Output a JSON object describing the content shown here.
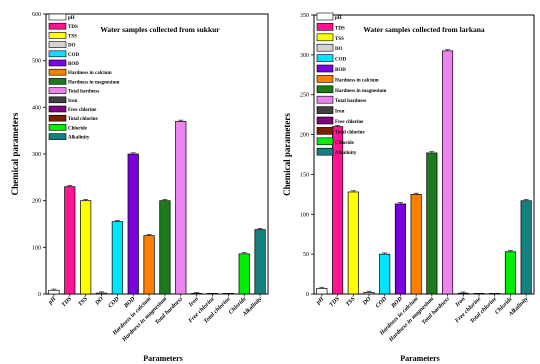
{
  "chart_data": [
    {
      "type": "bar",
      "title": "Water samples collected from sukkur",
      "xlabel": "Parameters",
      "ylabel": "Chemical parameters",
      "ylim": [
        0,
        600
      ],
      "yticks": [
        0,
        100,
        200,
        300,
        400,
        500,
        600
      ],
      "legend_position": "top-left",
      "categories": [
        "pH",
        "TDS",
        "TSS",
        "DO",
        "COD",
        "BOD",
        "Hardness in calcium",
        "Hardness in magnesium",
        "Total hardness",
        "Iron",
        "Free chlorine",
        "Total chlorine",
        "Chloride",
        "Alkalinity"
      ],
      "values": [
        8,
        230,
        200,
        2,
        155,
        300,
        125,
        200,
        370,
        1,
        0,
        0,
        86,
        138
      ]
    },
    {
      "type": "bar",
      "title": "Water samples collected from larkana",
      "xlabel": "Parameters",
      "ylabel": "Chemical parameters",
      "ylim": [
        0,
        350
      ],
      "yticks": [
        0,
        50,
        100,
        150,
        200,
        250,
        300,
        350
      ],
      "legend_position": "top-left",
      "categories": [
        "pH",
        "TDS",
        "TSS",
        "DO",
        "COD",
        "BOD",
        "Hardness in calcium",
        "Hardness in magnesium",
        "Total hardness",
        "Iron",
        "Free chlorine",
        "Total chlorine",
        "Chloride",
        "Alkalinity"
      ],
      "values": [
        7,
        210,
        128,
        2,
        50,
        113,
        125,
        177,
        305,
        1,
        0,
        0,
        53,
        117
      ]
    }
  ],
  "series_colors": [
    "#ffffff",
    "#ff1493",
    "#ffff00",
    "#d3d3d3",
    "#00e5ff",
    "#7b00e0",
    "#ff7f00",
    "#1b7a1b",
    "#ee82ee",
    "#404040",
    "#800080",
    "#7a1e00",
    "#00ee00",
    "#158080"
  ]
}
